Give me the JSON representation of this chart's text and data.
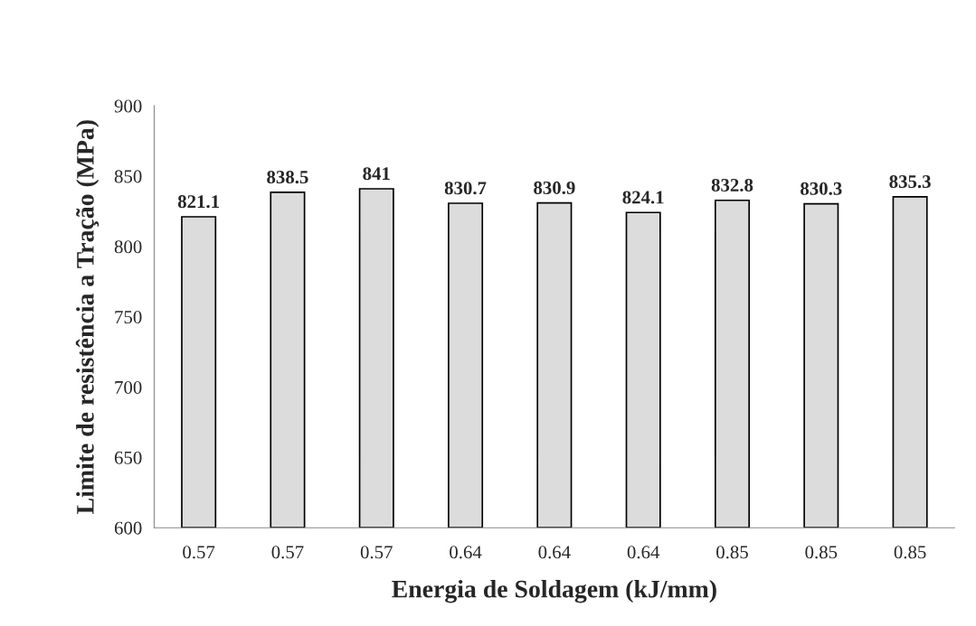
{
  "chart_data": {
    "type": "bar",
    "xlabel": "Energia de Soldagem (kJ/mm)",
    "ylabel": "Limite de resistência a Tração (MPa)",
    "categories": [
      "0.57",
      "0.57",
      "0.57",
      "0.64",
      "0.64",
      "0.64",
      "0.85",
      "0.85",
      "0.85"
    ],
    "values": [
      821.1,
      838.5,
      841,
      830.7,
      830.9,
      824.1,
      832.8,
      830.3,
      835.3
    ],
    "color": "#dcdcdc",
    "ylim": [
      600,
      900
    ],
    "yticks": [
      600,
      650,
      700,
      750,
      800,
      850,
      900
    ],
    "data_labels": true,
    "grid": false,
    "legend": false
  }
}
